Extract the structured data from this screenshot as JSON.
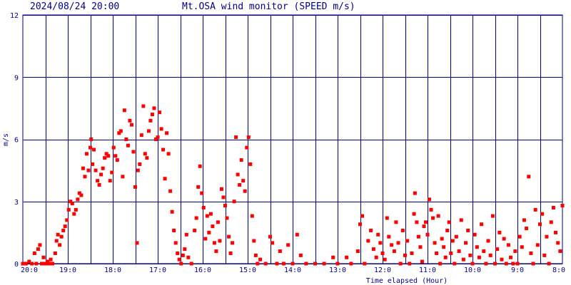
{
  "header": {
    "datetime": "2024/08/24 20:00",
    "title": "Mt.OSA wind monitor (SPEED m/s)"
  },
  "colors": {
    "grid": "#000080",
    "text": "#000080",
    "point": "#ff0000",
    "background": "#ffffff"
  },
  "chart_data": {
    "type": "scatter",
    "title": "Mt.OSA wind monitor (SPEED m/s)",
    "xlabel": "Time elapsed (Hour)",
    "ylabel": "m/s",
    "xlim": [
      0,
      12
    ],
    "ylim": [
      0,
      12
    ],
    "yticks": [
      "0",
      "3",
      "6",
      "9",
      "12"
    ],
    "xtick_labels": [
      "20:0",
      "19:0",
      "18:0",
      "17:0",
      "16:0",
      "15:0",
      "14:0",
      "13:0",
      "12:0",
      "11:0",
      "10:0",
      "9:0",
      "8:0"
    ],
    "grid": true,
    "marker": "square",
    "x_direction": "hours elapsed before 20:00, left to right",
    "series": [
      {
        "values": [
          [
            0.0,
            0.0
          ],
          [
            0.07,
            0.0
          ],
          [
            0.14,
            0.1
          ],
          [
            0.2,
            0.0
          ],
          [
            0.26,
            0.5
          ],
          [
            0.3,
            0.0
          ],
          [
            0.34,
            0.7
          ],
          [
            0.38,
            0.9
          ],
          [
            0.42,
            0.0
          ],
          [
            0.46,
            0.3
          ],
          [
            0.5,
            0.0
          ],
          [
            0.55,
            0.1
          ],
          [
            0.58,
            0.0
          ],
          [
            0.62,
            0.2
          ],
          [
            0.66,
            0.0
          ],
          [
            0.72,
            0.5
          ],
          [
            0.75,
            1.1
          ],
          [
            0.78,
            1.4
          ],
          [
            0.82,
            0.9
          ],
          [
            0.86,
            1.3
          ],
          [
            0.9,
            1.6
          ],
          [
            0.94,
            1.8
          ],
          [
            0.98,
            2.1
          ],
          [
            1.02,
            2.6
          ],
          [
            1.06,
            3.0
          ],
          [
            1.1,
            2.9
          ],
          [
            1.14,
            2.4
          ],
          [
            1.18,
            2.6
          ],
          [
            1.22,
            3.1
          ],
          [
            1.26,
            3.4
          ],
          [
            1.3,
            3.3
          ],
          [
            1.34,
            4.6
          ],
          [
            1.38,
            4.2
          ],
          [
            1.42,
            5.3
          ],
          [
            1.46,
            4.5
          ],
          [
            1.5,
            5.6
          ],
          [
            1.52,
            6.0
          ],
          [
            1.55,
            4.8
          ],
          [
            1.58,
            5.5
          ],
          [
            1.62,
            4.5
          ],
          [
            1.66,
            4.0
          ],
          [
            1.7,
            3.8
          ],
          [
            1.74,
            4.3
          ],
          [
            1.78,
            4.6
          ],
          [
            1.82,
            5.1
          ],
          [
            1.86,
            5.3
          ],
          [
            1.9,
            5.2
          ],
          [
            1.94,
            4.0
          ],
          [
            1.98,
            4.4
          ],
          [
            2.02,
            5.6
          ],
          [
            2.06,
            5.2
          ],
          [
            2.1,
            5.0
          ],
          [
            2.14,
            6.3
          ],
          [
            2.18,
            6.4
          ],
          [
            2.22,
            4.2
          ],
          [
            2.26,
            7.4
          ],
          [
            2.3,
            6.0
          ],
          [
            2.34,
            5.7
          ],
          [
            2.38,
            6.9
          ],
          [
            2.42,
            6.7
          ],
          [
            2.46,
            5.4
          ],
          [
            2.5,
            3.7
          ],
          [
            2.54,
            1.0
          ],
          [
            2.56,
            4.5
          ],
          [
            2.6,
            4.8
          ],
          [
            2.64,
            6.2
          ],
          [
            2.68,
            7.6
          ],
          [
            2.72,
            5.3
          ],
          [
            2.76,
            5.1
          ],
          [
            2.8,
            6.4
          ],
          [
            2.84,
            6.9
          ],
          [
            2.88,
            7.2
          ],
          [
            2.92,
            7.5
          ],
          [
            2.96,
            6.0
          ],
          [
            3.0,
            6.1
          ],
          [
            3.04,
            7.3
          ],
          [
            3.08,
            6.5
          ],
          [
            3.12,
            5.5
          ],
          [
            3.16,
            4.1
          ],
          [
            3.2,
            6.3
          ],
          [
            3.24,
            5.3
          ],
          [
            3.28,
            3.5
          ],
          [
            3.32,
            2.5
          ],
          [
            3.36,
            1.6
          ],
          [
            3.4,
            1.0
          ],
          [
            3.44,
            0.5
          ],
          [
            3.48,
            0.2
          ],
          [
            3.52,
            0.0
          ],
          [
            3.56,
            0.4
          ],
          [
            3.6,
            0.7
          ],
          [
            3.64,
            1.4
          ],
          [
            3.68,
            0.3
          ],
          [
            3.75,
            0.0
          ],
          [
            3.82,
            1.6
          ],
          [
            3.86,
            2.2
          ],
          [
            3.9,
            3.7
          ],
          [
            3.94,
            4.7
          ],
          [
            3.98,
            3.4
          ],
          [
            4.02,
            2.7
          ],
          [
            4.06,
            1.2
          ],
          [
            4.1,
            2.3
          ],
          [
            4.14,
            1.5
          ],
          [
            4.18,
            2.4
          ],
          [
            4.22,
            1.8
          ],
          [
            4.26,
            1.0
          ],
          [
            4.3,
            0.6
          ],
          [
            4.34,
            2.0
          ],
          [
            4.38,
            1.1
          ],
          [
            4.42,
            3.6
          ],
          [
            4.46,
            3.2
          ],
          [
            4.5,
            2.8
          ],
          [
            4.54,
            2.2
          ],
          [
            4.58,
            1.3
          ],
          [
            4.62,
            0.5
          ],
          [
            4.66,
            1.0
          ],
          [
            4.7,
            3.0
          ],
          [
            4.74,
            6.1
          ],
          [
            4.78,
            4.3
          ],
          [
            4.82,
            3.8
          ],
          [
            4.86,
            5.0
          ],
          [
            4.9,
            4.0
          ],
          [
            4.94,
            3.5
          ],
          [
            4.98,
            5.6
          ],
          [
            5.02,
            6.1
          ],
          [
            5.06,
            4.8
          ],
          [
            5.1,
            2.3
          ],
          [
            5.14,
            1.1
          ],
          [
            5.18,
            0.4
          ],
          [
            5.22,
            0.0
          ],
          [
            5.28,
            0.2
          ],
          [
            5.4,
            0.0
          ],
          [
            5.5,
            1.3
          ],
          [
            5.55,
            1.0
          ],
          [
            5.65,
            0.0
          ],
          [
            5.72,
            0.6
          ],
          [
            5.8,
            0.0
          ],
          [
            5.9,
            0.9
          ],
          [
            6.0,
            0.0
          ],
          [
            6.1,
            1.4
          ],
          [
            6.18,
            0.4
          ],
          [
            6.3,
            0.0
          ],
          [
            6.5,
            0.0
          ],
          [
            6.7,
            0.0
          ],
          [
            6.9,
            0.3
          ],
          [
            7.0,
            0.0
          ],
          [
            7.2,
            0.3
          ],
          [
            7.3,
            0.0
          ],
          [
            7.45,
            0.6
          ],
          [
            7.5,
            1.9
          ],
          [
            7.55,
            2.3
          ],
          [
            7.6,
            0.0
          ],
          [
            7.68,
            1.1
          ],
          [
            7.74,
            1.6
          ],
          [
            7.8,
            0.7
          ],
          [
            7.86,
            0.3
          ],
          [
            7.9,
            1.4
          ],
          [
            7.95,
            1.0
          ],
          [
            8.0,
            0.5
          ],
          [
            8.05,
            0.2
          ],
          [
            8.1,
            2.2
          ],
          [
            8.14,
            1.3
          ],
          [
            8.2,
            0.9
          ],
          [
            8.26,
            0.6
          ],
          [
            8.3,
            2.0
          ],
          [
            8.35,
            1.0
          ],
          [
            8.4,
            0.0
          ],
          [
            8.45,
            1.6
          ],
          [
            8.5,
            0.4
          ],
          [
            8.55,
            1.1
          ],
          [
            8.6,
            0.0
          ],
          [
            8.65,
            0.5
          ],
          [
            8.7,
            2.4
          ],
          [
            8.72,
            3.4
          ],
          [
            8.76,
            2.0
          ],
          [
            8.8,
            1.3
          ],
          [
            8.84,
            0.8
          ],
          [
            8.88,
            0.1
          ],
          [
            8.92,
            1.8
          ],
          [
            8.96,
            2.0
          ],
          [
            9.0,
            1.4
          ],
          [
            9.04,
            3.1
          ],
          [
            9.08,
            2.6
          ],
          [
            9.12,
            2.2
          ],
          [
            9.16,
            1.0
          ],
          [
            9.2,
            0.5
          ],
          [
            9.24,
            2.3
          ],
          [
            9.28,
            0.0
          ],
          [
            9.32,
            1.2
          ],
          [
            9.36,
            0.8
          ],
          [
            9.4,
            0.3
          ],
          [
            9.44,
            1.6
          ],
          [
            9.48,
            2.0
          ],
          [
            9.52,
            0.5
          ],
          [
            9.56,
            1.1
          ],
          [
            9.6,
            0.0
          ],
          [
            9.64,
            1.3
          ],
          [
            9.7,
            0.6
          ],
          [
            9.75,
            2.1
          ],
          [
            9.8,
            0.2
          ],
          [
            9.85,
            1.0
          ],
          [
            9.9,
            1.6
          ],
          [
            9.95,
            0.4
          ],
          [
            10.0,
            0.0
          ],
          [
            10.05,
            1.4
          ],
          [
            10.1,
            0.8
          ],
          [
            10.15,
            0.3
          ],
          [
            10.2,
            1.9
          ],
          [
            10.25,
            0.6
          ],
          [
            10.3,
            0.0
          ],
          [
            10.35,
            1.1
          ],
          [
            10.4,
            0.4
          ],
          [
            10.45,
            2.3
          ],
          [
            10.5,
            0.0
          ],
          [
            10.55,
            0.7
          ],
          [
            10.6,
            1.5
          ],
          [
            10.65,
            0.2
          ],
          [
            10.7,
            1.2
          ],
          [
            10.75,
            0.0
          ],
          [
            10.8,
            0.9
          ],
          [
            10.85,
            0.3
          ],
          [
            10.9,
            0.0
          ],
          [
            10.95,
            0.6
          ],
          [
            11.0,
            0.0
          ],
          [
            11.05,
            1.3
          ],
          [
            11.1,
            0.8
          ],
          [
            11.15,
            2.1
          ],
          [
            11.2,
            1.7
          ],
          [
            11.25,
            4.2
          ],
          [
            11.3,
            0.5
          ],
          [
            11.35,
            0.0
          ],
          [
            11.4,
            2.6
          ],
          [
            11.45,
            0.9
          ],
          [
            11.5,
            1.9
          ],
          [
            11.55,
            2.4
          ],
          [
            11.6,
            0.4
          ],
          [
            11.65,
            1.3
          ],
          [
            11.7,
            0.0
          ],
          [
            11.75,
            2.0
          ],
          [
            11.8,
            2.7
          ],
          [
            11.85,
            1.5
          ],
          [
            11.9,
            1.0
          ],
          [
            11.95,
            0.6
          ],
          [
            12.0,
            2.8
          ]
        ]
      }
    ]
  }
}
